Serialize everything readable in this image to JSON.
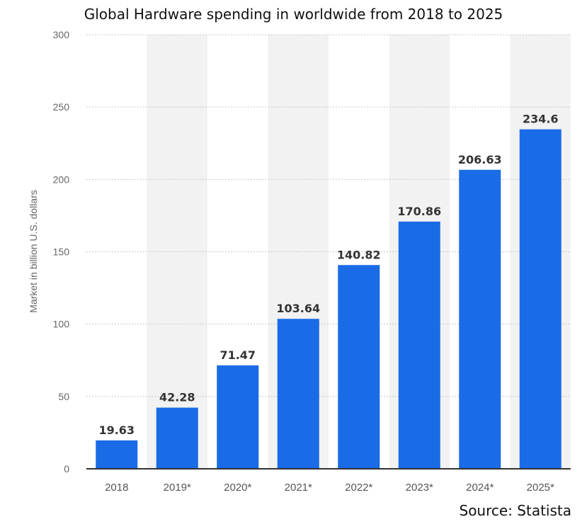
{
  "chart_data": {
    "type": "bar",
    "title": "Global Hardware spending in worldwide from 2018 to 2025",
    "ylabel": "Market in billion U.S. dollars",
    "xlabel": "",
    "categories": [
      "2018",
      "2019*",
      "2020*",
      "2021*",
      "2022*",
      "2023*",
      "2024*",
      "2025*"
    ],
    "values": [
      19.63,
      42.28,
      71.47,
      103.64,
      140.82,
      170.86,
      206.63,
      234.6
    ],
    "value_labels": [
      "19.63",
      "42.28",
      "71.47",
      "103.64",
      "140.82",
      "170.86",
      "206.63",
      "234.6"
    ],
    "ylim": [
      0,
      300
    ],
    "yticks": [
      0,
      50,
      100,
      150,
      200,
      250,
      300
    ],
    "grid": true,
    "legend": "none",
    "bar_color": "#1a6be6",
    "shade_color": "#f2f2f2"
  },
  "source": "Source: Statista"
}
